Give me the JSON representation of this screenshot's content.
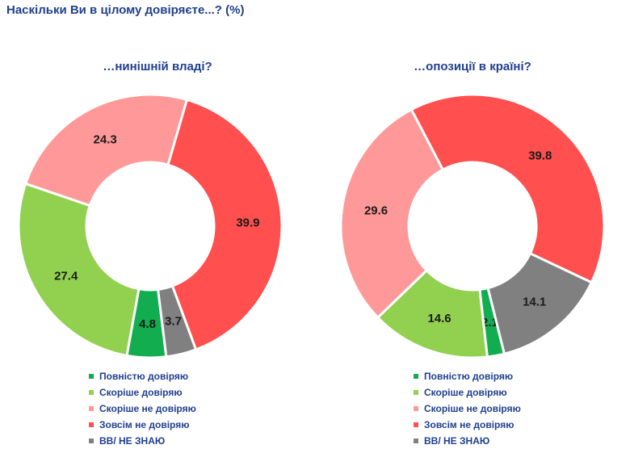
{
  "page": {
    "title": "Наскільки Ви в цілому довіряєте...? (%)"
  },
  "colors": {
    "Повністю довіряю": "#12ad4e",
    "Скоріше довіряю": "#92d050",
    "Скоріше не довіряю": "#ff9999",
    "Зовсім не довіряю": "#ff4f4f",
    "ВВ/ НЕ ЗНАЮ": "#808080"
  },
  "chart_data": [
    {
      "type": "pie",
      "donut": true,
      "title": "…нинішній владі?",
      "categories": [
        "Повністю довіряю",
        "Скоріше довіряю",
        "Скоріше не довіряю",
        "Зовсім не довіряю",
        "ВВ/ НЕ ЗНАЮ"
      ],
      "values": [
        4.8,
        27.4,
        24.3,
        39.9,
        3.7
      ],
      "legend": "bottom"
    },
    {
      "type": "pie",
      "donut": true,
      "title": "…опозиції в країні?",
      "categories": [
        "Повністю довіряю",
        "Скоріше довіряю",
        "Скоріше не довіряю",
        "Зовсім не довіряю",
        "ВВ/ НЕ ЗНАЮ"
      ],
      "values": [
        2.1,
        14.6,
        29.6,
        39.8,
        14.1
      ],
      "legend": "bottom"
    }
  ]
}
